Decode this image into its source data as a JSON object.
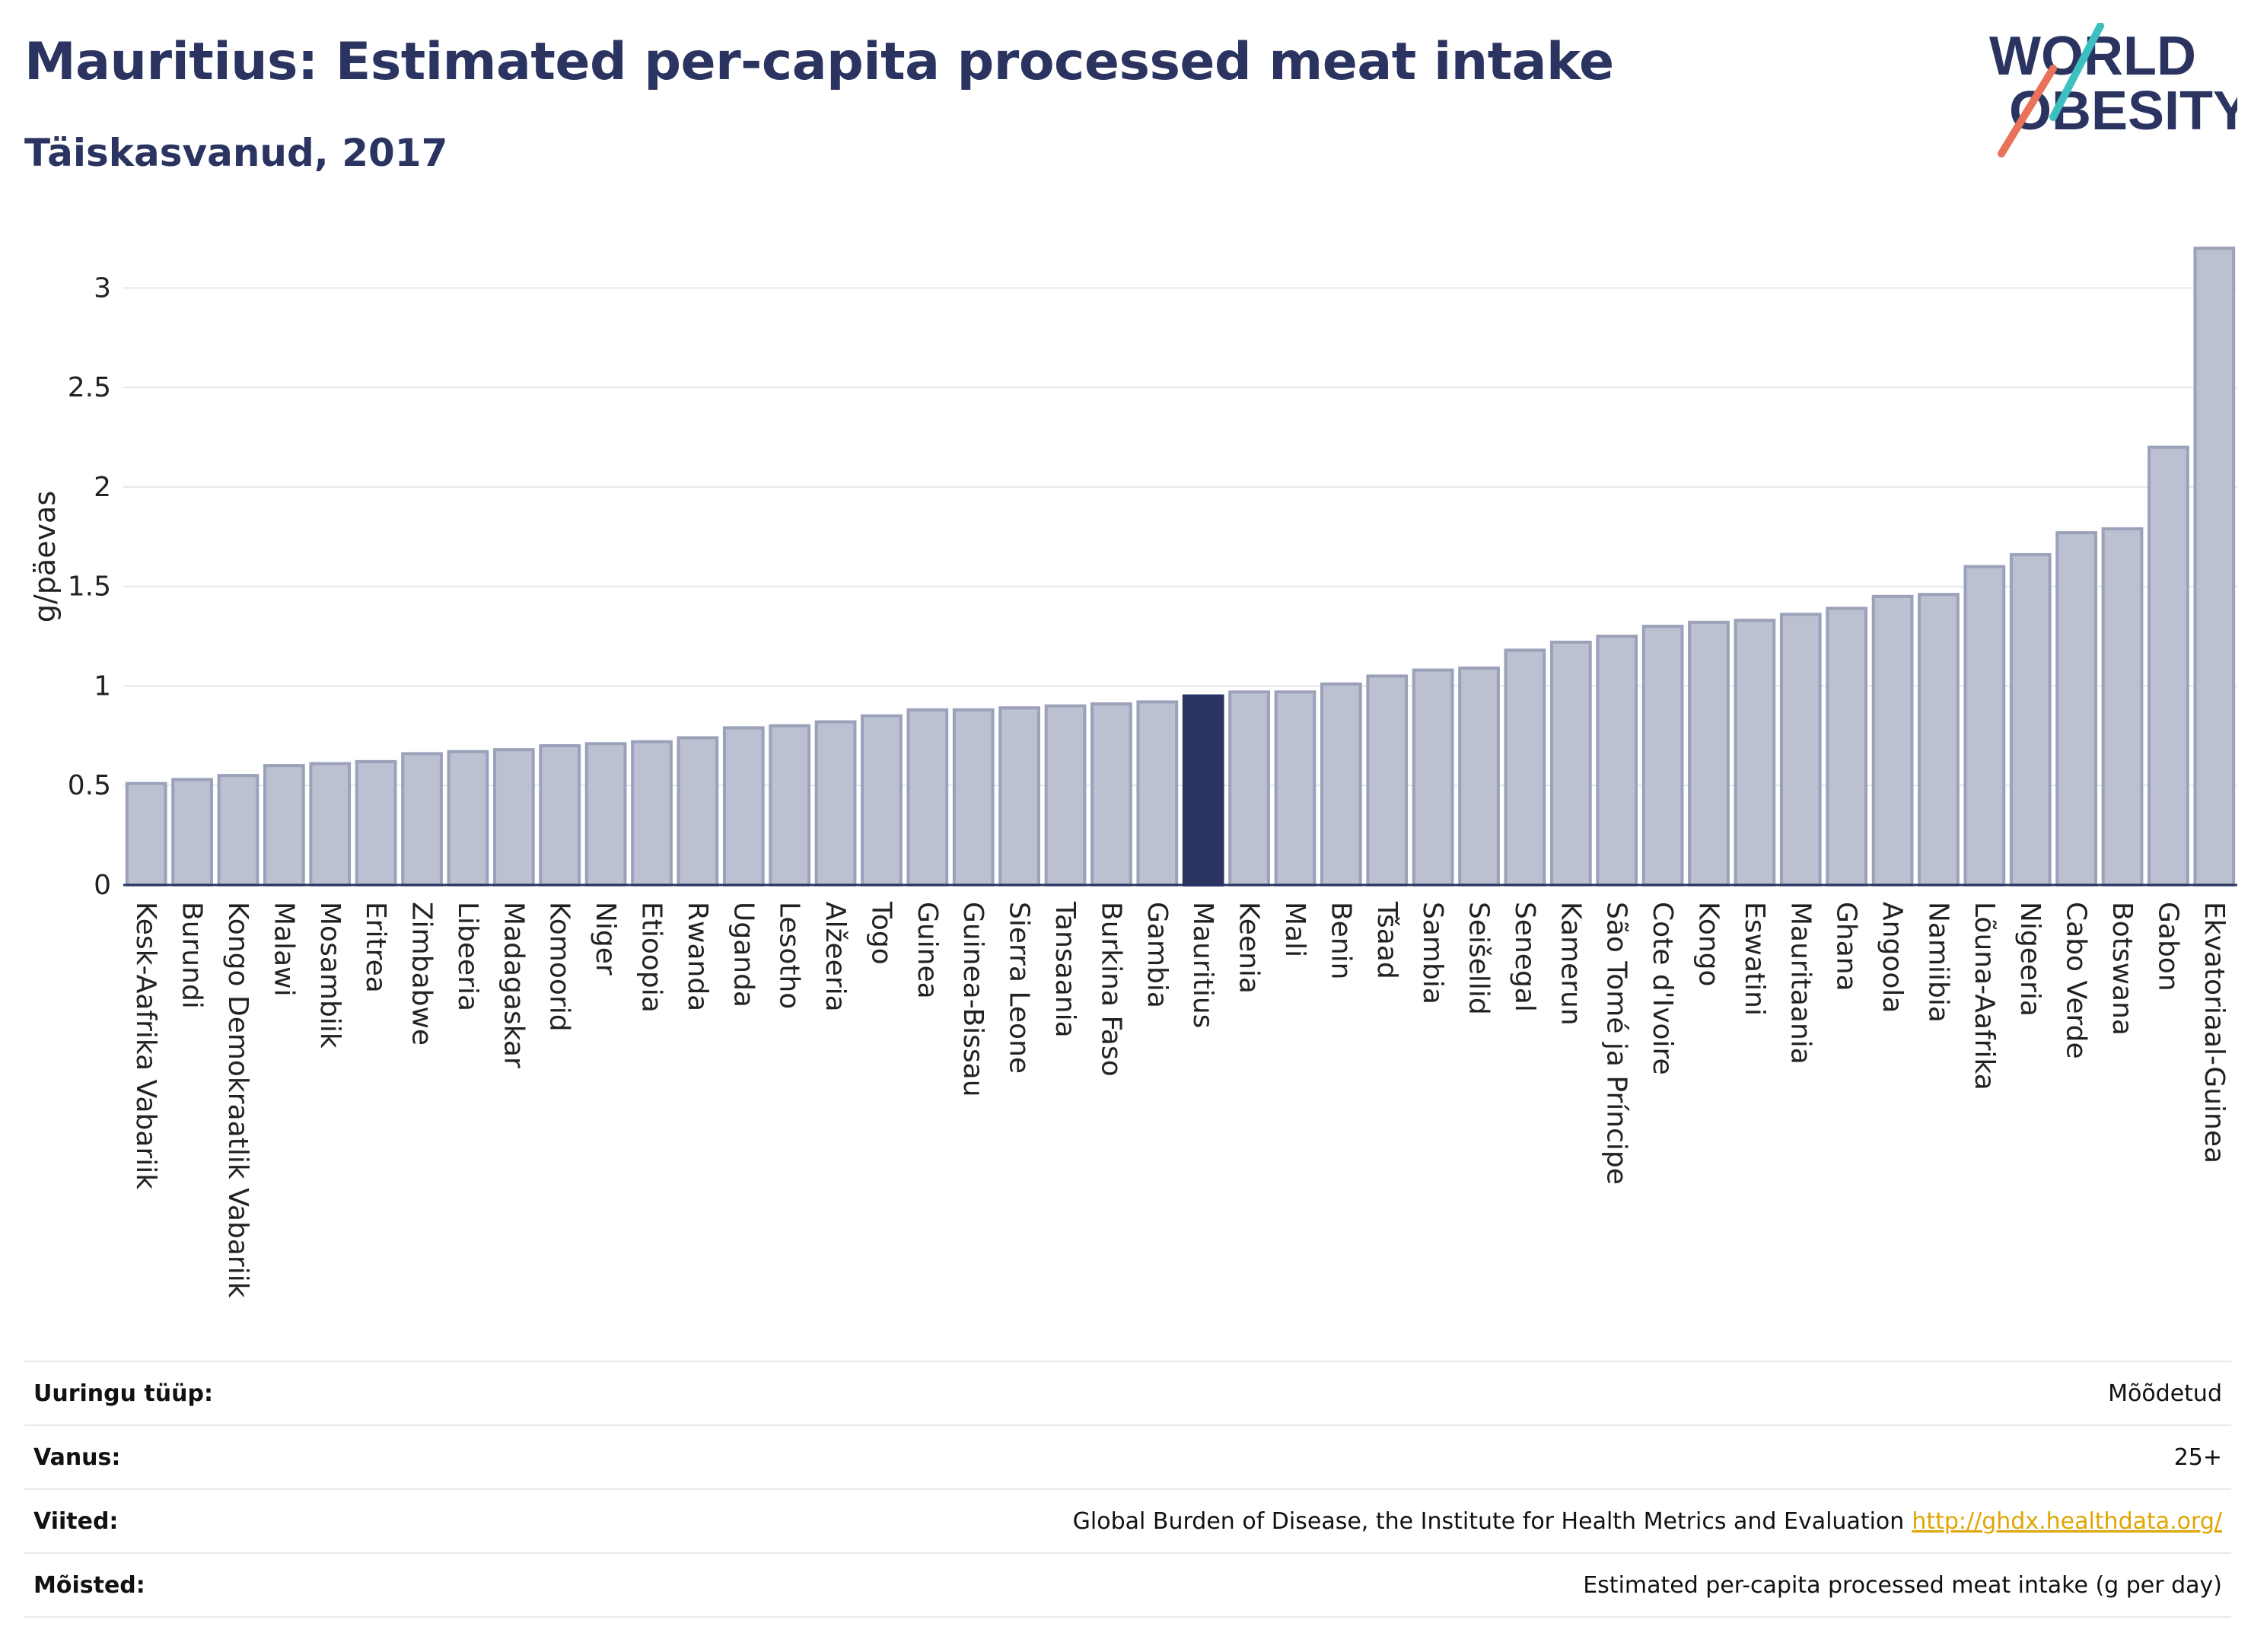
{
  "header": {
    "title": "Mauritius: Estimated per-capita processed meat intake",
    "subtitle": "Täiskasvanud, 2017"
  },
  "logo": {
    "line1": "WORLD",
    "line2": "OBESITY",
    "colors": {
      "text": "#2b3460",
      "slash_teal": "#3bbfbf",
      "slash_coral": "#e8735a"
    }
  },
  "chart_data": {
    "type": "bar",
    "title": "Mauritius: Estimated per-capita processed meat intake",
    "subtitle": "Täiskasvanud, 2017",
    "xlabel": "",
    "ylabel": "g/päevas",
    "ylim": [
      0,
      3.3
    ],
    "yticks": [
      0,
      0.5,
      1,
      1.5,
      2,
      2.5,
      3
    ],
    "ytick_labels": [
      "0",
      "0.5",
      "1",
      "1.5",
      "2",
      "2.5",
      "3"
    ],
    "grid": true,
    "highlight": "Mauritius",
    "colors": {
      "bar": "#bcc1d1",
      "bar_edge": "#9aa1b9",
      "highlight": "#2b3460"
    },
    "categories": [
      "Kesk-Aafrika Vabariik",
      "Burundi",
      "Kongo Demokraatlik Vabariik",
      "Malawi",
      "Mosambiik",
      "Eritrea",
      "Zimbabwe",
      "Libeeria",
      "Madagaskar",
      "Komoorid",
      "Niger",
      "Etioopia",
      "Rwanda",
      "Uganda",
      "Lesotho",
      "Alžeeria",
      "Togo",
      "Guinea",
      "Guinea-Bissau",
      "Sierra Leone",
      "Tansaania",
      "Burkina Faso",
      "Gambia",
      "Mauritius",
      "Keenia",
      "Mali",
      "Benin",
      "Tšaad",
      "Sambia",
      "Seišellid",
      "Senegal",
      "Kamerun",
      "São Tomé ja Príncipe",
      "Cote d'Ivoire",
      "Kongo",
      "Eswatini",
      "Mauritaania",
      "Ghana",
      "Angoola",
      "Namiibia",
      "Lõuna-Aafrika",
      "Nigeeria",
      "Cabo Verde",
      "Botswana",
      "Gabon",
      "Ekvatoriaal-Guinea"
    ],
    "values": [
      0.51,
      0.53,
      0.55,
      0.6,
      0.61,
      0.62,
      0.66,
      0.67,
      0.68,
      0.7,
      0.71,
      0.72,
      0.74,
      0.79,
      0.8,
      0.82,
      0.85,
      0.88,
      0.88,
      0.89,
      0.9,
      0.91,
      0.92,
      0.95,
      0.97,
      0.97,
      1.01,
      1.05,
      1.08,
      1.09,
      1.18,
      1.22,
      1.25,
      1.3,
      1.32,
      1.33,
      1.36,
      1.39,
      1.45,
      1.46,
      1.6,
      1.66,
      1.77,
      1.79,
      2.2,
      3.2
    ]
  },
  "meta": [
    {
      "label": "Uuringu tüüp:",
      "value": "Mõõdetud"
    },
    {
      "label": "Vanus:",
      "value": "25+"
    },
    {
      "label": "Viited:",
      "value": "Global Burden of Disease, the Institute for Health Metrics and Evaluation",
      "link": "http://ghdx.healthdata.org/"
    },
    {
      "label": "Mõisted:",
      "value": "Estimated per-capita processed meat intake (g per day)"
    }
  ]
}
